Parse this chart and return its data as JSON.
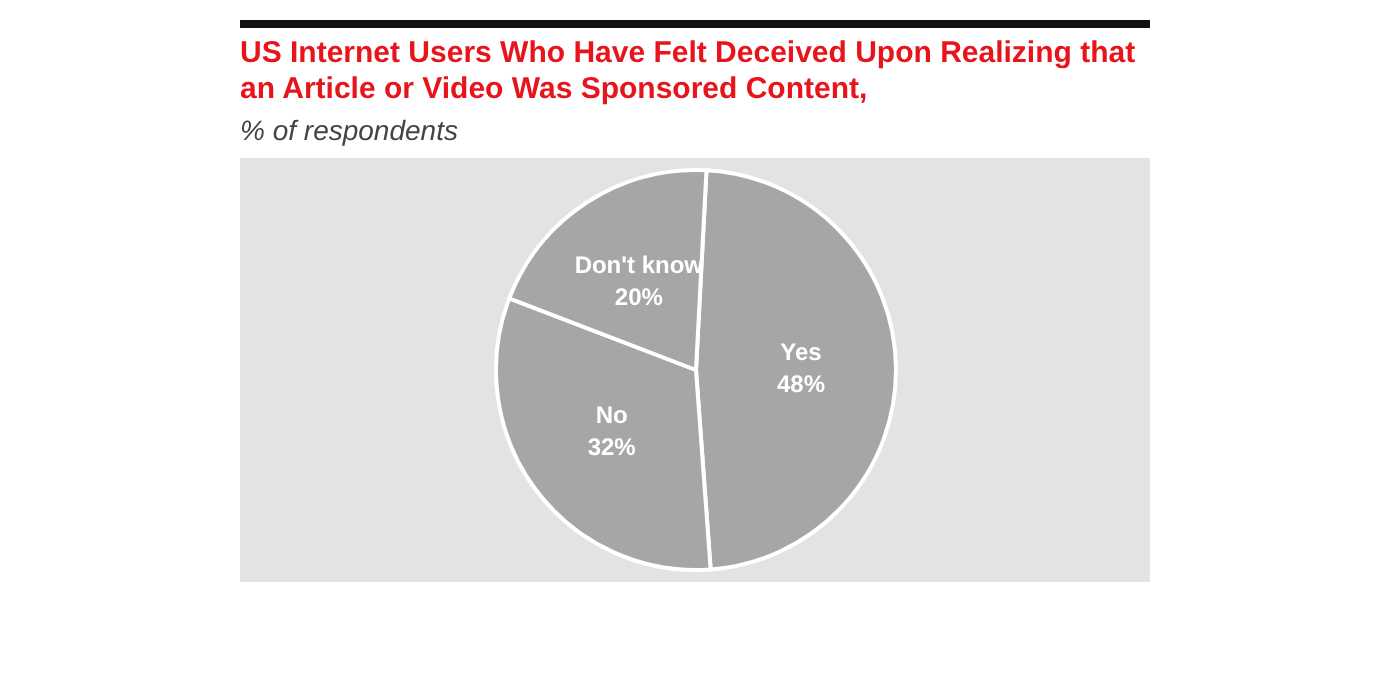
{
  "chart_data": {
    "type": "pie",
    "title": "US Internet Users Who Have Felt Deceived Upon Realizing that an Article or Video Was Sponsored Content,",
    "subtitle": "% of respondents",
    "categories": [
      "Yes",
      "No",
      "Don't know"
    ],
    "values": [
      48,
      32,
      20
    ],
    "value_labels": [
      "48%",
      "32%",
      "20%"
    ],
    "colors": [
      "#a6a6a6",
      "#a6a6a6",
      "#a6a6a6"
    ],
    "legend": false
  }
}
